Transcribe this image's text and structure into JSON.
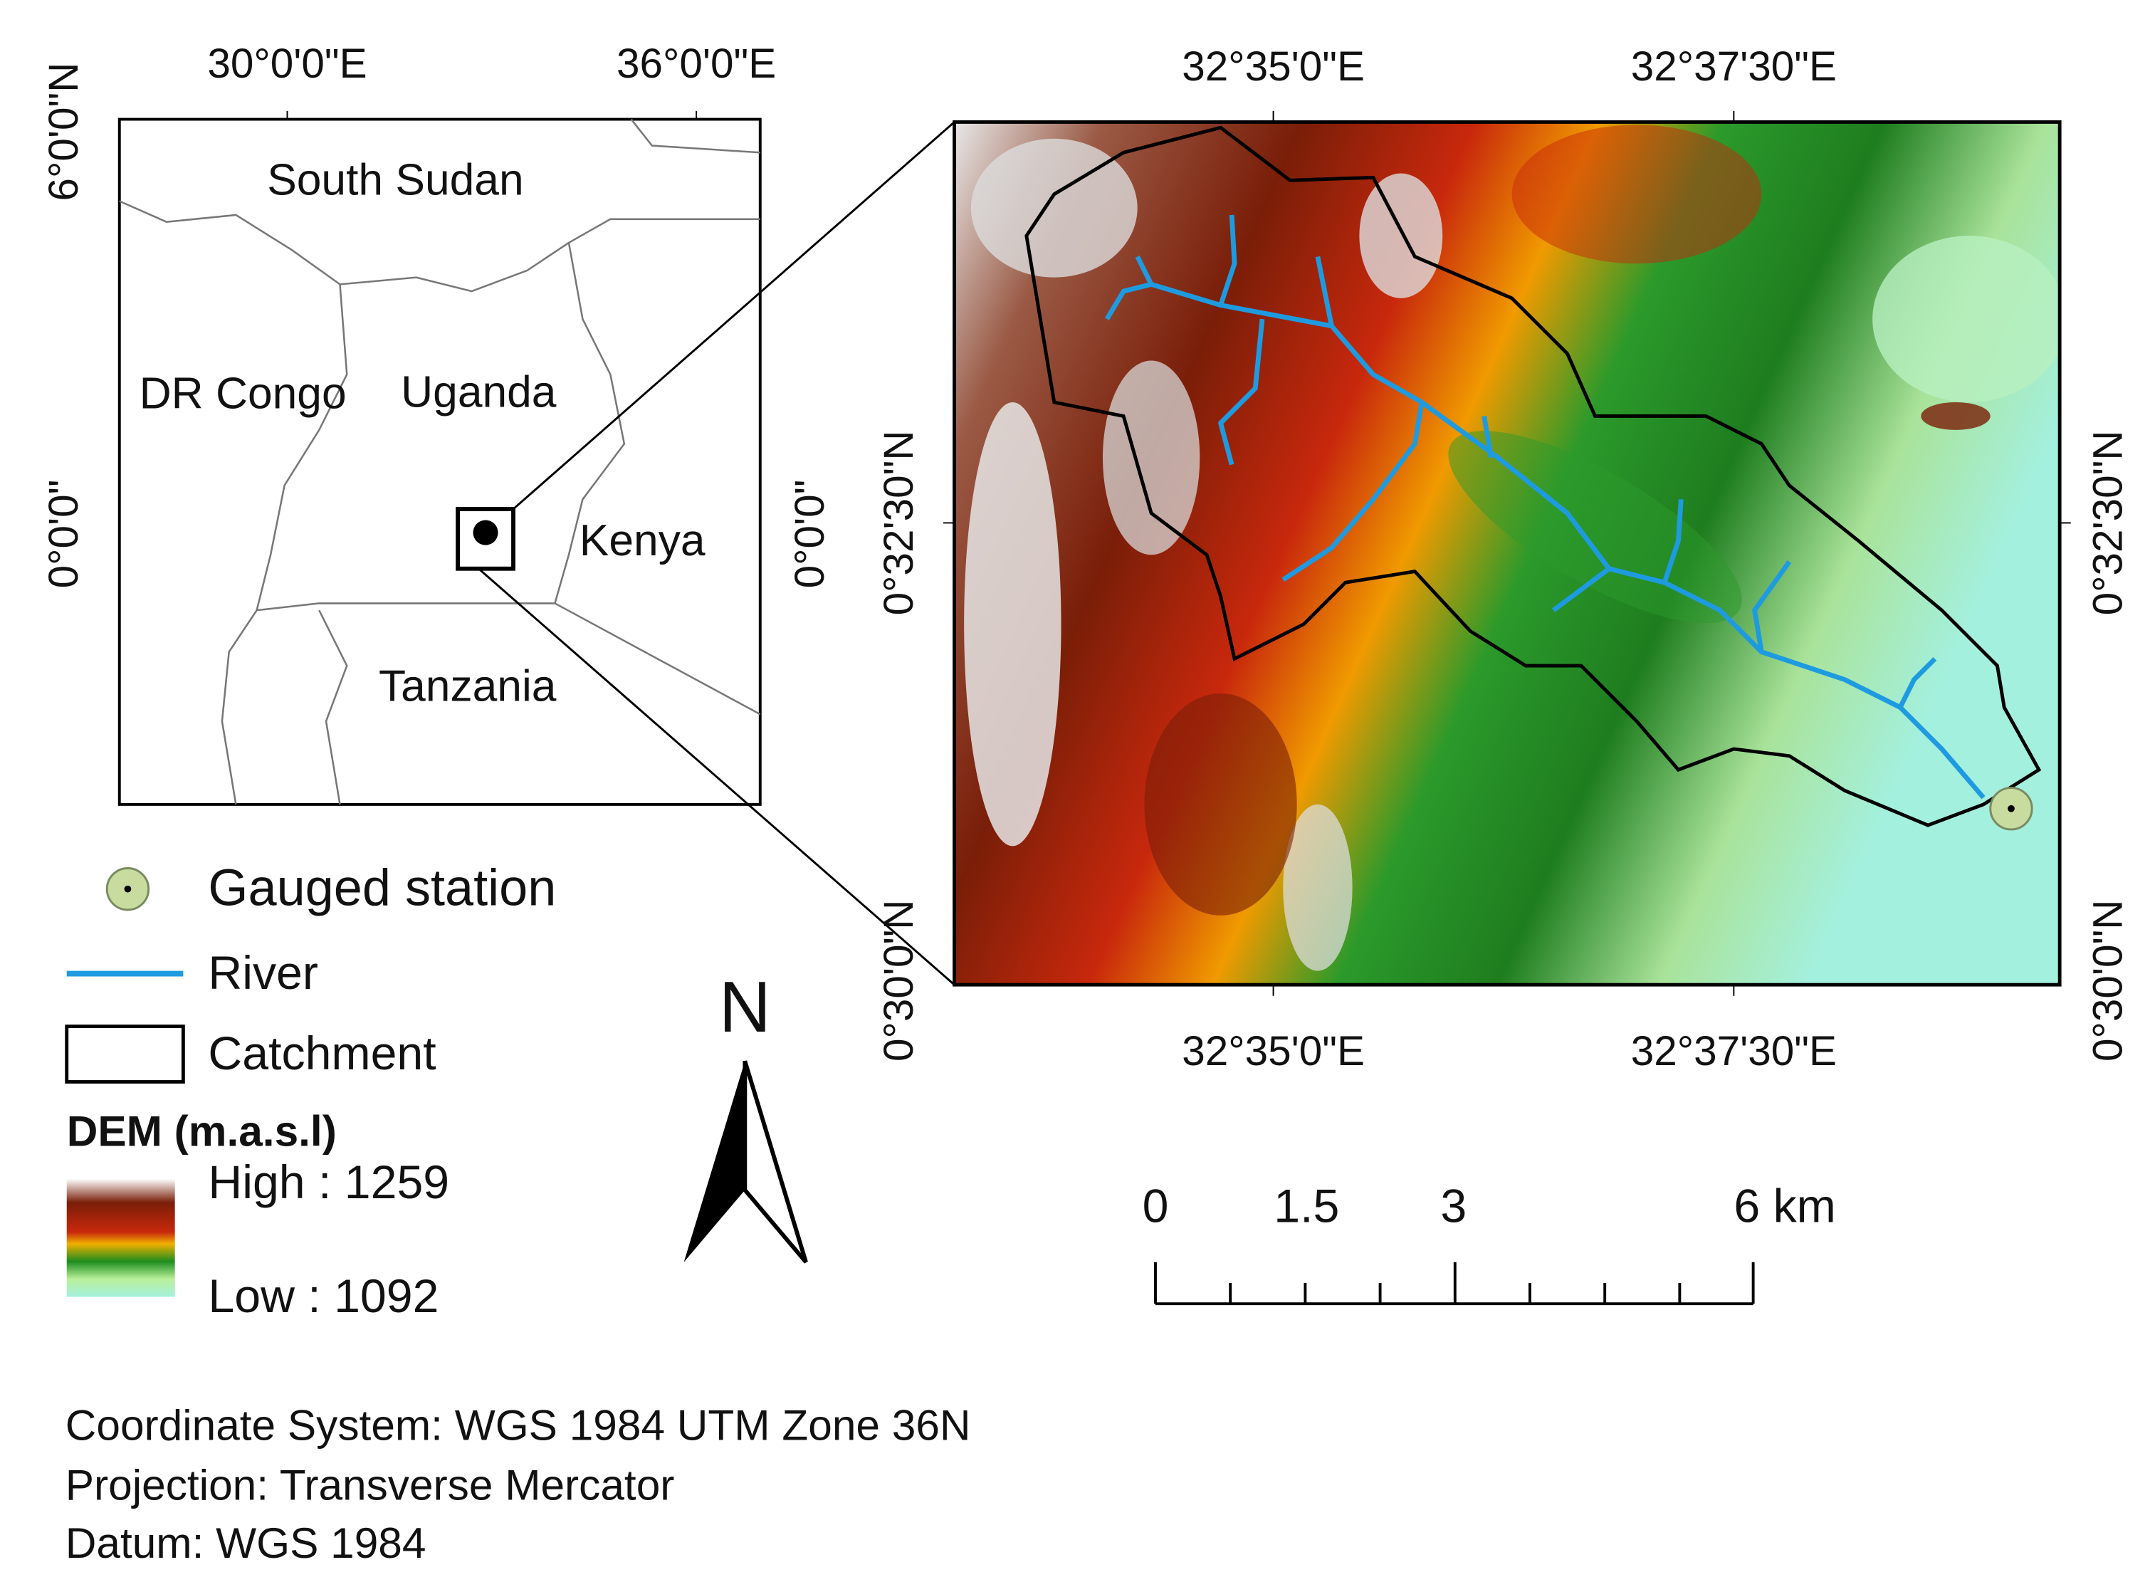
{
  "inset_map": {
    "top_labels": [
      "30°0'0\"E",
      "36°0'0\"E"
    ],
    "left_labels": [
      "6°0'0\"N",
      "0°0'0\""
    ],
    "right_labels": [
      "0°0'0\""
    ],
    "countries": [
      "South Sudan",
      "DR Congo",
      "Uganda",
      "Kenya",
      "Tanzania"
    ]
  },
  "main_map": {
    "top_labels": [
      "32°35'0\"E",
      "32°37'30\"E"
    ],
    "bottom_labels": [
      "32°35'0\"E",
      "32°37'30\"E"
    ],
    "left_labels": [
      "0°32'30\"N",
      "0°30'0\"N"
    ],
    "right_labels": [
      "0°32'30\"N",
      "0°30'0\"N"
    ]
  },
  "legend": {
    "items": [
      "Gauged station",
      "River",
      "Catchment"
    ],
    "dem_title": "DEM (m.a.s.l)",
    "high": "High : 1259",
    "low": "Low : 1092"
  },
  "north_arrow": "N",
  "scale_bar": {
    "labels": [
      "0",
      "1.5",
      "3",
      "6 km"
    ]
  },
  "footer": [
    "Coordinate System: WGS 1984 UTM Zone 36N",
    "Projection: Transverse Mercator",
    "Datum: WGS 1984"
  ]
}
